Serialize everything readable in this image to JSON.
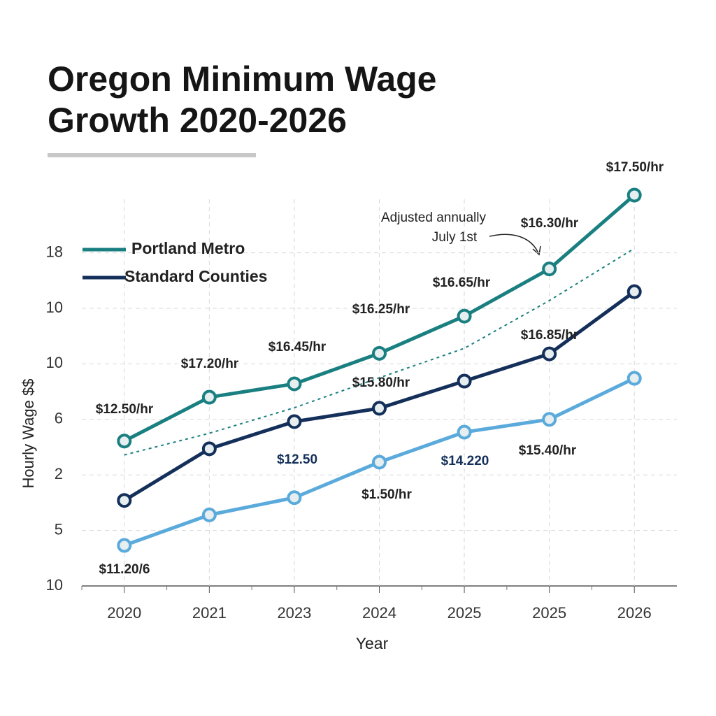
{
  "chart_data": {
    "type": "line",
    "title_lines": [
      "Oregon Minimum Wage",
      "Growth 2020-2026"
    ],
    "x_label": "Year",
    "y_label": "Hourly Wage $$",
    "categories": [
      "2020",
      "2021",
      "2023",
      "2024",
      "2025",
      "2025",
      "2026"
    ],
    "series": [
      {
        "name": "Portland Metro",
        "color": "#1a7f80",
        "values": [
          2.61,
          3.4,
          3.64,
          4.19,
          4.86,
          5.71,
          7.04
        ]
      },
      {
        "name": "Standard Counties",
        "color": "#14305a",
        "values": [
          1.54,
          2.47,
          2.96,
          3.2,
          3.69,
          4.18,
          5.3
        ]
      },
      {
        "color": "#5aaadc",
        "values": [
          0.73,
          1.28,
          1.59,
          2.23,
          2.77,
          3.0,
          3.74
        ]
      },
      {
        "color": "#1a7f80",
        "dashed": true,
        "values": [
          2.36,
          2.75,
          3.21,
          3.75,
          4.28,
          5.14,
          6.08
        ]
      }
    ],
    "ylim": [
      0,
      7.5
    ],
    "yticks": [
      {
        "value": 0,
        "label": "10"
      },
      {
        "value": 1,
        "label": "5"
      },
      {
        "value": 2,
        "label": "2"
      },
      {
        "value": 3,
        "label": "6"
      },
      {
        "value": 4,
        "label": "10"
      },
      {
        "value": 5,
        "label": "10"
      },
      {
        "value": 6,
        "label": "18"
      }
    ],
    "grid": true,
    "annotations": [
      "$17.50/hr",
      "$16.30/hr",
      "$16.65/hr",
      "$16.25/hr",
      "$16.45/hr",
      "$17.20/hr",
      "$12.50/hr",
      "$15.80/hr",
      "$16.85/hr",
      "$12.50",
      "$14.220",
      "$15.40/hr",
      "$1.50/hr",
      "$11.20/6"
    ],
    "callout": [
      "Adjusted annually",
      "July 1st"
    ]
  }
}
